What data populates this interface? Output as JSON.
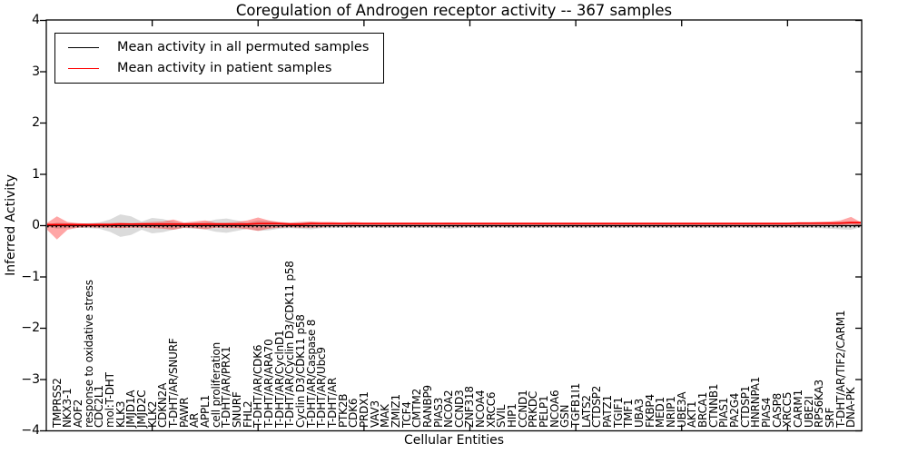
{
  "title": "Coregulation of Androgen receptor activity -- 367 samples",
  "legend": {
    "items": [
      {
        "label": "Mean activity in all permuted samples",
        "color": "#000000"
      },
      {
        "label": "Mean activity in patient samples",
        "color": "#ff0000"
      }
    ]
  },
  "chart_data": {
    "type": "line",
    "title": "Coregulation of Androgen receptor activity -- 367 samples",
    "xlabel": "Cellular Entities",
    "ylabel": "Inferred Activity",
    "ylim": [
      -4,
      4
    ],
    "ytick_labels": [
      "4",
      "3",
      "2",
      "1",
      "0",
      "−1",
      "−2",
      "−3",
      "−4"
    ],
    "ytick_values": [
      4,
      3,
      2,
      1,
      0,
      -1,
      -2,
      -3,
      -4
    ],
    "grid": false,
    "legend_position": "upper left",
    "categories": [
      "TMPRSS2",
      "NKX3-1",
      "AOF2",
      "response to oxidative stress",
      "CDC2L1",
      "mol:T-DHT",
      "KLK3",
      "JMJD1A",
      "JMJD2C",
      "KLK2",
      "CDKN2A",
      "T-DHT/AR/SNURF",
      "PAWR",
      "AR",
      "APPL1",
      "cell proliferation",
      "T-DHT/AR/PRX1",
      "SNURF",
      "FHL2",
      "T-DHT/AR/CDK6",
      "T-DHT/AR/ARA70",
      "T-DHT/AR/CyclnD1",
      "T-DHT/AR/Cyclin D3/CDK11 p58",
      "Cyclin D3/CDK11 p58",
      "T-DHT/AR/Caspase 8",
      "T-DHT/AR/Ubc9",
      "T-DHT/AR",
      "PTK2B",
      "CDK6",
      "PRDX1",
      "VAV3",
      "MAK",
      "ZMIZ1",
      "TCF4",
      "CMTM2",
      "RANBP9",
      "PIAS3",
      "NCOA2",
      "CCND3",
      "ZNF318",
      "NCOA4",
      "XRCC6",
      "SVIL",
      "HIP1",
      "CCND1",
      "PRKDC",
      "PELP1",
      "NCOA6",
      "GSN",
      "TGFB1I1",
      "LATS2",
      "CTDSP2",
      "PATZ1",
      "TGIF1",
      "TMF1",
      "UBA3",
      "FKBP4",
      "MED1",
      "NRIP1",
      "UBE3A",
      "AKT1",
      "BRCA1",
      "CTNNB1",
      "PIAS1",
      "PA2G4",
      "CTDSP1",
      "HNRNPA1",
      "PIAS4",
      "CASP8",
      "XRCC5",
      "CARM1",
      "UBE2I",
      "RPS6KA3",
      "SRF",
      "T-DHT/AR/TIF2/CARM1",
      "DNA-PK"
    ],
    "series": [
      {
        "name": "Mean activity in all permuted samples",
        "color": "#000000",
        "style": "solid-with-dotted-overlay",
        "values": [
          0,
          0,
          0,
          0,
          0,
          0,
          0,
          0,
          0,
          0,
          0,
          0,
          0,
          0,
          0,
          0,
          0,
          0,
          0,
          0,
          0,
          0,
          0,
          0,
          0,
          0,
          0,
          0,
          0,
          0,
          0,
          0,
          0,
          0,
          0,
          0,
          0,
          0,
          0,
          0,
          0,
          0,
          0,
          0,
          0,
          0,
          0,
          0,
          0,
          0,
          0,
          0,
          0,
          0,
          0,
          0,
          0,
          0,
          0,
          0,
          0,
          0,
          0,
          0,
          0,
          0,
          0,
          0,
          0,
          0,
          0,
          0,
          0,
          0,
          0,
          0
        ]
      },
      {
        "name": "Mean activity in patient samples",
        "color": "#ff0000",
        "style": "solid",
        "values": [
          0.02,
          0.02,
          0.02,
          0.02,
          0.02,
          0.02,
          0.03,
          0.03,
          0.03,
          0.03,
          0.03,
          0.03,
          0.03,
          0.03,
          0.03,
          0.03,
          0.03,
          0.03,
          0.03,
          0.04,
          0.04,
          0.04,
          0.03,
          0.03,
          0.04,
          0.04,
          0.04,
          0.04,
          0.04,
          0.04,
          0.04,
          0.04,
          0.04,
          0.04,
          0.04,
          0.04,
          0.04,
          0.04,
          0.04,
          0.04,
          0.04,
          0.04,
          0.04,
          0.04,
          0.04,
          0.04,
          0.04,
          0.04,
          0.04,
          0.04,
          0.04,
          0.04,
          0.04,
          0.04,
          0.04,
          0.04,
          0.04,
          0.04,
          0.04,
          0.04,
          0.04,
          0.04,
          0.04,
          0.04,
          0.04,
          0.04,
          0.04,
          0.04,
          0.04,
          0.04,
          0.05,
          0.05,
          0.05,
          0.05,
          0.05,
          0.06
        ]
      }
    ],
    "bands": [
      {
        "name": "permuted-samples-variance",
        "color": "#999999",
        "opacity": 0.35,
        "upper": [
          0.06,
          0.05,
          0.04,
          0.05,
          0.06,
          0.12,
          0.22,
          0.18,
          0.08,
          0.15,
          0.13,
          0.08,
          0.05,
          0.06,
          0.07,
          0.12,
          0.14,
          0.1,
          0.06,
          0.1,
          0.09,
          0.06,
          0.05,
          0.06,
          0.07,
          0.05,
          0.05,
          0.04,
          0.05,
          0.04,
          0.04,
          0.05,
          0.04,
          0.04,
          0.05,
          0.04,
          0.05,
          0.06,
          0.05,
          0.04,
          0.05,
          0.04,
          0.04,
          0.05,
          0.04,
          0.05,
          0.04,
          0.04,
          0.05,
          0.04,
          0.05,
          0.04,
          0.04,
          0.05,
          0.04,
          0.04,
          0.05,
          0.04,
          0.05,
          0.04,
          0.04,
          0.05,
          0.04,
          0.05,
          0.04,
          0.04,
          0.05,
          0.04,
          0.05,
          0.04,
          0.05,
          0.04,
          0.05,
          0.06,
          0.07,
          0.08
        ],
        "lower": [
          -0.06,
          -0.05,
          -0.04,
          -0.05,
          -0.06,
          -0.12,
          -0.22,
          -0.18,
          -0.08,
          -0.15,
          -0.13,
          -0.08,
          -0.05,
          -0.06,
          -0.07,
          -0.12,
          -0.14,
          -0.1,
          -0.06,
          -0.1,
          -0.09,
          -0.06,
          -0.05,
          -0.06,
          -0.07,
          -0.05,
          -0.05,
          -0.04,
          -0.05,
          -0.04,
          -0.04,
          -0.05,
          -0.04,
          -0.04,
          -0.05,
          -0.04,
          -0.05,
          -0.06,
          -0.05,
          -0.04,
          -0.05,
          -0.04,
          -0.04,
          -0.05,
          -0.04,
          -0.05,
          -0.04,
          -0.04,
          -0.05,
          -0.04,
          -0.05,
          -0.04,
          -0.04,
          -0.05,
          -0.04,
          -0.04,
          -0.05,
          -0.04,
          -0.05,
          -0.04,
          -0.04,
          -0.05,
          -0.04,
          -0.05,
          -0.04,
          -0.04,
          -0.05,
          -0.04,
          -0.05,
          -0.04,
          -0.05,
          -0.04,
          -0.05,
          -0.06,
          -0.07,
          -0.08
        ]
      },
      {
        "name": "patient-samples-variance",
        "color": "#ff0000",
        "opacity": 0.35,
        "upper": [
          0.18,
          0.07,
          0.05,
          0.04,
          0.05,
          0.05,
          0.06,
          0.05,
          0.06,
          0.07,
          0.08,
          0.12,
          0.06,
          0.08,
          0.1,
          0.06,
          0.06,
          0.07,
          0.1,
          0.16,
          0.1,
          0.07,
          0.06,
          0.07,
          0.08,
          0.07,
          0.07,
          0.06,
          0.07,
          0.06,
          0.06,
          0.06,
          0.06,
          0.06,
          0.06,
          0.06,
          0.06,
          0.06,
          0.06,
          0.06,
          0.06,
          0.06,
          0.06,
          0.06,
          0.06,
          0.06,
          0.06,
          0.06,
          0.06,
          0.06,
          0.06,
          0.06,
          0.06,
          0.06,
          0.06,
          0.06,
          0.06,
          0.06,
          0.06,
          0.06,
          0.06,
          0.06,
          0.06,
          0.06,
          0.06,
          0.06,
          0.06,
          0.06,
          0.06,
          0.06,
          0.06,
          0.06,
          0.07,
          0.08,
          0.1,
          0.17
        ],
        "lower": [
          -0.27,
          -0.08,
          -0.04,
          -0.03,
          -0.04,
          -0.04,
          -0.05,
          -0.04,
          -0.04,
          -0.05,
          -0.06,
          -0.08,
          -0.04,
          -0.05,
          -0.07,
          -0.04,
          -0.05,
          -0.05,
          -0.07,
          -0.1,
          -0.06,
          -0.04,
          -0.03,
          -0.04,
          -0.04,
          -0.03,
          -0.02,
          -0.02,
          -0.02,
          -0.02,
          -0.02,
          -0.02,
          -0.02,
          -0.02,
          -0.02,
          -0.02,
          -0.02,
          -0.02,
          -0.02,
          -0.02,
          -0.02,
          -0.02,
          -0.02,
          -0.02,
          -0.02,
          -0.02,
          -0.02,
          -0.02,
          -0.02,
          -0.02,
          -0.02,
          -0.02,
          -0.02,
          -0.02,
          -0.02,
          -0.02,
          -0.02,
          -0.02,
          -0.02,
          -0.02,
          -0.02,
          -0.02,
          -0.02,
          -0.02,
          -0.02,
          -0.02,
          -0.02,
          -0.02,
          -0.02,
          -0.02,
          -0.02,
          -0.02,
          -0.01,
          0.0,
          0.01,
          0.02
        ]
      }
    ],
    "zero_reference_line": {
      "value": 0,
      "style": "dotted",
      "color": "#000000"
    }
  }
}
